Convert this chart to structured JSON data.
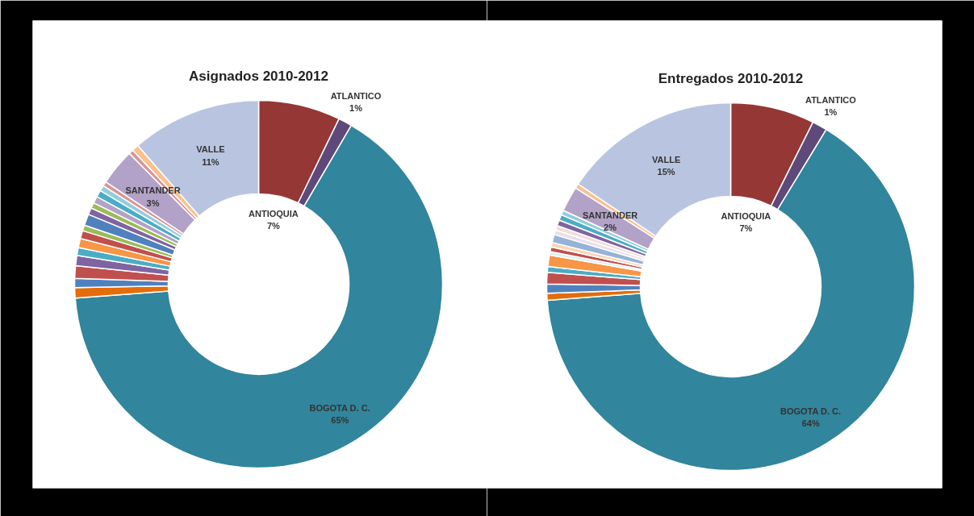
{
  "chart_data": [
    {
      "type": "donut",
      "title": "Asignados 2010-2012",
      "categories": [
        "ANTIOQUIA",
        "ATLANTICO",
        "BOGOTA D. C.",
        null,
        null,
        null,
        null,
        null,
        null,
        null,
        null,
        null,
        null,
        null,
        null,
        null,
        null,
        null,
        "SANTANDER",
        null,
        null,
        "VALLE"
      ],
      "values": [
        7.2,
        1.2,
        65.4,
        0.9,
        0.8,
        1.1,
        0.9,
        0.7,
        0.8,
        0.7,
        0.5,
        1.0,
        0.6,
        0.5,
        0.6,
        0.6,
        0.5,
        0.4,
        3.2,
        0.4,
        0.6,
        11.4
      ],
      "value_labels": [
        "7%",
        "1%",
        "65%",
        null,
        null,
        null,
        null,
        null,
        null,
        null,
        null,
        null,
        null,
        null,
        null,
        null,
        null,
        null,
        "3%",
        null,
        null,
        "11%"
      ],
      "colors": [
        "#953735",
        "#5f497a",
        "#31859c",
        "#e46c0a",
        "#4f81bd",
        "#c0504d",
        "#8064a2",
        "#4bacc6",
        "#f79646",
        "#c0504d",
        "#9bbb59",
        "#4f81bd",
        "#8064a2",
        "#9bbb59",
        "#b3a2c7",
        "#4bacc6",
        "#93cddd",
        "#d99694",
        "#b3a2c7",
        "#d99694",
        "#fac090",
        "#b9c5e0"
      ]
    },
    {
      "type": "donut",
      "title": "Entregados 2010-2012",
      "categories": [
        "ANTIOQUIA",
        "ATLANTICO",
        "BOGOTA D. C.",
        null,
        null,
        null,
        null,
        null,
        null,
        null,
        null,
        null,
        null,
        null,
        null,
        null,
        null,
        "SANTANDER",
        null,
        "VALLE"
      ],
      "values": [
        7.3,
        1.3,
        64.4,
        0.6,
        0.8,
        1.0,
        0.5,
        1.0,
        0.3,
        0.4,
        0.4,
        0.7,
        0.4,
        0.4,
        0.5,
        0.5,
        0.4,
        2.2,
        0.4,
        15.4
      ],
      "value_labels": [
        "7%",
        "1%",
        "64%",
        null,
        null,
        null,
        null,
        null,
        null,
        null,
        null,
        null,
        null,
        null,
        null,
        null,
        null,
        "2%",
        null,
        "15%"
      ],
      "colors": [
        "#953735",
        "#5f497a",
        "#31859c",
        "#e46c0a",
        "#4f81bd",
        "#c0504d",
        "#4bacc6",
        "#f79646",
        "#dbeef4",
        "#c0504d",
        "#fcd5b5",
        "#95b3d7",
        "#e6e0ec",
        "#f2dcdb",
        "#8064a2",
        "#4bacc6",
        "#93cddd",
        "#b3a2c7",
        "#fac090",
        "#b9c5e0"
      ]
    }
  ]
}
